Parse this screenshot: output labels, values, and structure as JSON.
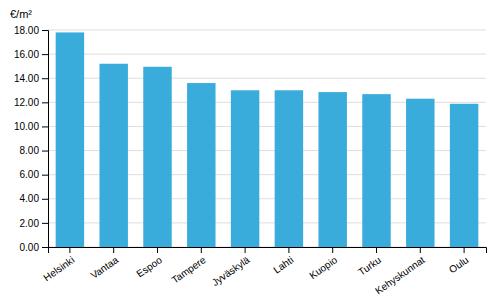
{
  "chart_data": {
    "type": "bar",
    "ylabel": "€/m²",
    "categories": [
      "Helsinki",
      "Vantaa",
      "Espoo",
      "Tampere",
      "Jyväskylä",
      "Lahti",
      "Kuopio",
      "Turku",
      "Kehyskunnat",
      "Oulu"
    ],
    "values": [
      17.8,
      15.2,
      14.95,
      13.6,
      13.0,
      13.0,
      12.85,
      12.68,
      12.3,
      11.88
    ],
    "color": "#3aacdc",
    "ylim": [
      0,
      18.0
    ],
    "yticks": [
      {
        "value": 0,
        "label": "0.00"
      },
      {
        "value": 2,
        "label": "2.00"
      },
      {
        "value": 4,
        "label": "4.00"
      },
      {
        "value": 6,
        "label": "6.00"
      },
      {
        "value": 8,
        "label": "8.00"
      },
      {
        "value": 10,
        "label": "10.00"
      },
      {
        "value": 12,
        "label": "12.00"
      },
      {
        "value": 14,
        "label": "14.00"
      },
      {
        "value": 16,
        "label": "16.00"
      },
      {
        "value": 18,
        "label": "18.00"
      }
    ],
    "grid": true
  }
}
